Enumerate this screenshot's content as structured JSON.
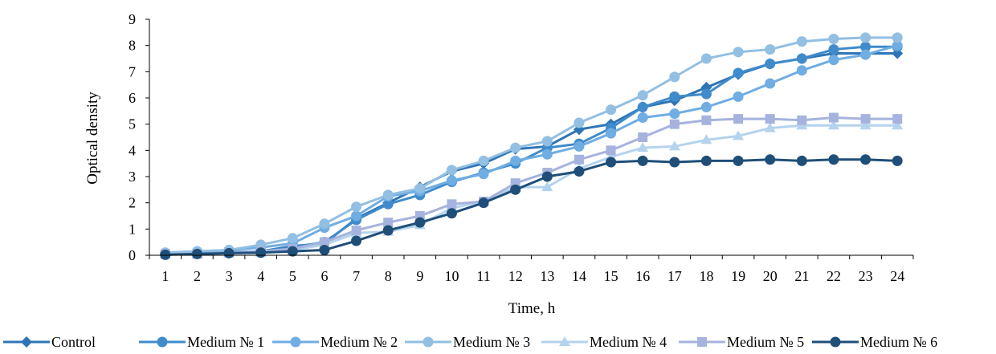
{
  "chart_data": {
    "type": "line",
    "title": "",
    "xlabel": "Time, h",
    "ylabel": "Optical density",
    "ylim": [
      0,
      9
    ],
    "yticks": [
      0,
      1,
      2,
      3,
      4,
      5,
      6,
      7,
      8,
      9
    ],
    "categories": [
      "1",
      "2",
      "3",
      "4",
      "5",
      "6",
      "7",
      "8",
      "9",
      "10",
      "11",
      "12",
      "13",
      "14",
      "15",
      "16",
      "17",
      "18",
      "19",
      "20",
      "21",
      "22",
      "23",
      "24"
    ],
    "grid": false,
    "legend_position": "bottom",
    "series": [
      {
        "name": "Control",
        "color": "#2E75B6",
        "marker": "diamond",
        "values": [
          0.05,
          0.08,
          0.12,
          0.15,
          0.35,
          0.45,
          1.4,
          2.0,
          2.6,
          3.2,
          3.5,
          4.05,
          4.15,
          4.8,
          5.0,
          5.65,
          5.9,
          6.4,
          6.9,
          7.3,
          7.5,
          7.7,
          7.7,
          7.7
        ]
      },
      {
        "name": "Medium № 1",
        "color": "#3F8BCB",
        "marker": "circle",
        "values": [
          0.05,
          0.08,
          0.1,
          0.15,
          0.3,
          0.5,
          1.35,
          1.95,
          2.3,
          2.8,
          3.15,
          3.5,
          4.1,
          4.25,
          4.85,
          5.65,
          6.05,
          6.15,
          6.95,
          7.3,
          7.5,
          7.85,
          7.95,
          7.95
        ]
      },
      {
        "name": "Medium № 2",
        "color": "#6FADE3",
        "marker": "circle",
        "values": [
          0.1,
          0.15,
          0.2,
          0.3,
          0.45,
          1.05,
          1.5,
          2.25,
          2.45,
          2.85,
          3.1,
          3.6,
          3.85,
          4.15,
          4.65,
          5.25,
          5.4,
          5.65,
          6.05,
          6.55,
          7.05,
          7.45,
          7.65,
          8.0
        ]
      },
      {
        "name": "Medium № 3",
        "color": "#92BFE2",
        "marker": "circle",
        "values": [
          0.1,
          0.15,
          0.2,
          0.4,
          0.65,
          1.2,
          1.85,
          2.3,
          2.55,
          3.25,
          3.6,
          4.1,
          4.35,
          5.05,
          5.55,
          6.1,
          6.8,
          7.5,
          7.75,
          7.85,
          8.15,
          8.25,
          8.3,
          8.3
        ]
      },
      {
        "name": "Medium № 4",
        "color": "#B4D3EE",
        "marker": "triangle",
        "values": [
          0.05,
          0.05,
          0.08,
          0.1,
          0.2,
          0.4,
          0.85,
          0.9,
          1.15,
          1.8,
          2.05,
          2.6,
          2.6,
          3.3,
          3.75,
          4.1,
          4.15,
          4.4,
          4.55,
          4.85,
          4.95,
          4.95,
          4.95,
          4.95
        ]
      },
      {
        "name": "Medium № 5",
        "color": "#A5B3DE",
        "marker": "square",
        "values": [
          0.05,
          0.05,
          0.1,
          0.15,
          0.25,
          0.5,
          0.95,
          1.25,
          1.5,
          1.95,
          2.05,
          2.75,
          3.15,
          3.65,
          4.0,
          4.5,
          5.0,
          5.15,
          5.2,
          5.2,
          5.15,
          5.25,
          5.2,
          5.2
        ]
      },
      {
        "name": "Medium № 6",
        "color": "#1F4E79",
        "marker": "circle",
        "values": [
          0.02,
          0.05,
          0.08,
          0.1,
          0.15,
          0.2,
          0.55,
          0.95,
          1.25,
          1.6,
          2.0,
          2.5,
          3.0,
          3.2,
          3.55,
          3.6,
          3.55,
          3.6,
          3.6,
          3.65,
          3.6,
          3.65,
          3.65,
          3.6
        ]
      }
    ]
  }
}
